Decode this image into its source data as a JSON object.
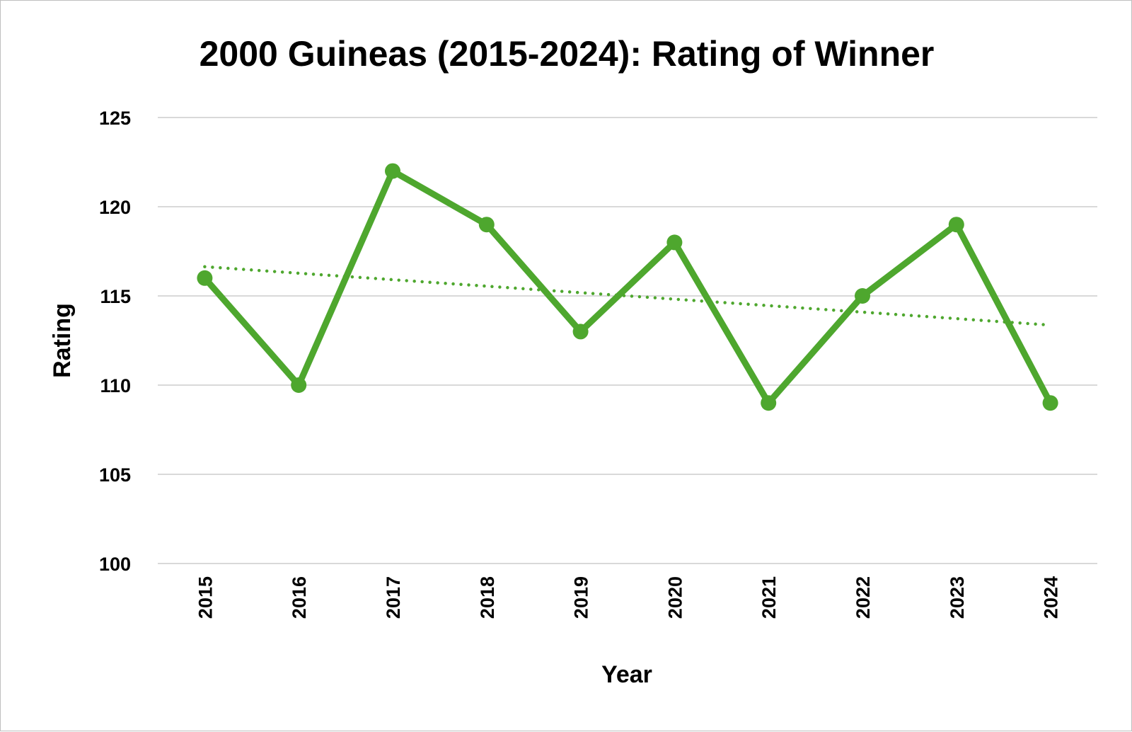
{
  "chart_data": {
    "type": "line",
    "title": "2000 Guineas (2015-2024): Rating of Winner",
    "xlabel": "Year",
    "ylabel": "Rating",
    "categories": [
      "2015",
      "2016",
      "2017",
      "2018",
      "2019",
      "2020",
      "2021",
      "2022",
      "2023",
      "2024"
    ],
    "series": [
      {
        "values": [
          116,
          110,
          122,
          119,
          113,
          118,
          109,
          115,
          119,
          109
        ],
        "color": "#4ea72e"
      }
    ],
    "trendline": {
      "type": "linear",
      "style": "dotted",
      "color": "#4ea72e"
    },
    "ylim": [
      100,
      125
    ],
    "yticks": [
      100,
      105,
      110,
      115,
      120,
      125
    ],
    "grid": true,
    "legend": "none",
    "xtick_rotation": -90
  }
}
